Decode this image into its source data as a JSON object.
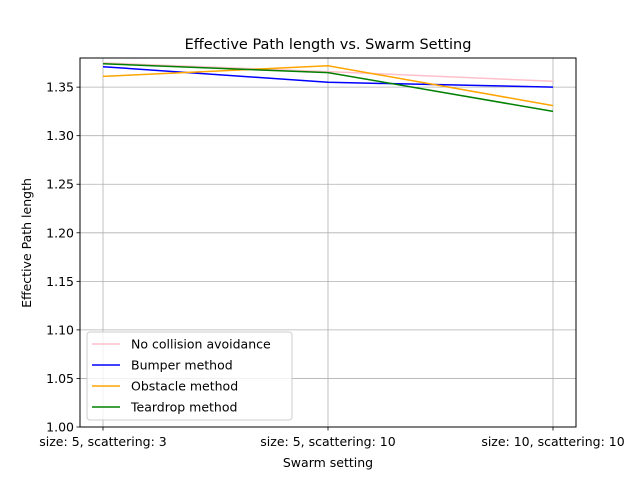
{
  "chart_data": {
    "type": "line",
    "title": "Effective Path length vs. Swarm Setting",
    "xlabel": "Swarm setting",
    "ylabel": "Effective Path length",
    "categories": [
      "size: 5, scattering: 3",
      "size: 5, scattering: 10",
      "size: 10, scattering: 10"
    ],
    "ylim": [
      1.0,
      1.38
    ],
    "yticks": [
      1.0,
      1.05,
      1.1,
      1.15,
      1.2,
      1.25,
      1.3,
      1.35
    ],
    "ytick_labels": [
      "1.00",
      "1.05",
      "1.10",
      "1.15",
      "1.20",
      "1.25",
      "1.30",
      "1.35"
    ],
    "grid": true,
    "legend_position": "lower-left",
    "series": [
      {
        "name": "No collision avoidance",
        "color": "#ffc0cb",
        "values": [
          1.375,
          1.366,
          1.356
        ]
      },
      {
        "name": "Bumper method",
        "color": "#0000ff",
        "values": [
          1.371,
          1.355,
          1.35
        ]
      },
      {
        "name": "Obstacle method",
        "color": "#ffa500",
        "values": [
          1.361,
          1.372,
          1.331
        ]
      },
      {
        "name": "Teardrop method",
        "color": "#008000",
        "values": [
          1.374,
          1.365,
          1.325
        ]
      }
    ]
  }
}
